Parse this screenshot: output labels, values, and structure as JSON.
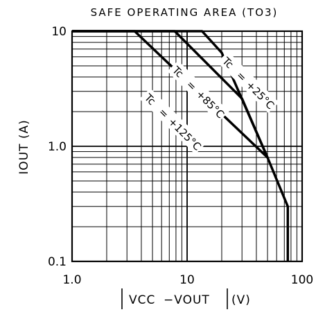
{
  "chart_data": {
    "type": "line",
    "title": "SAFE OPERATING AREA (TO3)",
    "xlabel": "|VCC −VOUT|(V)",
    "ylabel": "IOUT (A)",
    "x_scale": "log",
    "y_scale": "log",
    "xlim": [
      1,
      100
    ],
    "ylim": [
      0.1,
      10
    ],
    "grid": true,
    "legend": "none",
    "x_ticks": [
      "1.0",
      "10",
      "100"
    ],
    "y_ticks": [
      "0.1",
      "1.0",
      "10"
    ],
    "series": [
      {
        "name": "Tc = +25°C",
        "label_parts": [
          "Tc",
          "=",
          "+25°C"
        ],
        "label_at": {
          "x": 34,
          "y": 3.6
        },
        "points": [
          [
            1,
            10
          ],
          [
            13.5,
            10
          ],
          [
            20,
            6.5
          ],
          [
            50,
            0.8
          ],
          [
            75,
            0.3
          ],
          [
            75,
            0.1
          ]
        ]
      },
      {
        "name": "Tc = +85°C",
        "label_parts": [
          "Tc",
          "=",
          "+85°C"
        ],
        "label_at": {
          "x": 12.5,
          "y": 3.0
        },
        "points": [
          [
            1,
            10
          ],
          [
            7.8,
            10
          ],
          [
            30,
            2.6
          ],
          [
            50,
            0.8
          ]
        ]
      },
      {
        "name": "Tc = +125°C",
        "label_parts": [
          "Tc",
          "=",
          "+125°C"
        ],
        "label_at": {
          "x": 7.5,
          "y": 1.65
        },
        "points": [
          [
            1,
            10
          ],
          [
            3.5,
            10
          ],
          [
            50,
            0.8
          ]
        ]
      }
    ]
  }
}
